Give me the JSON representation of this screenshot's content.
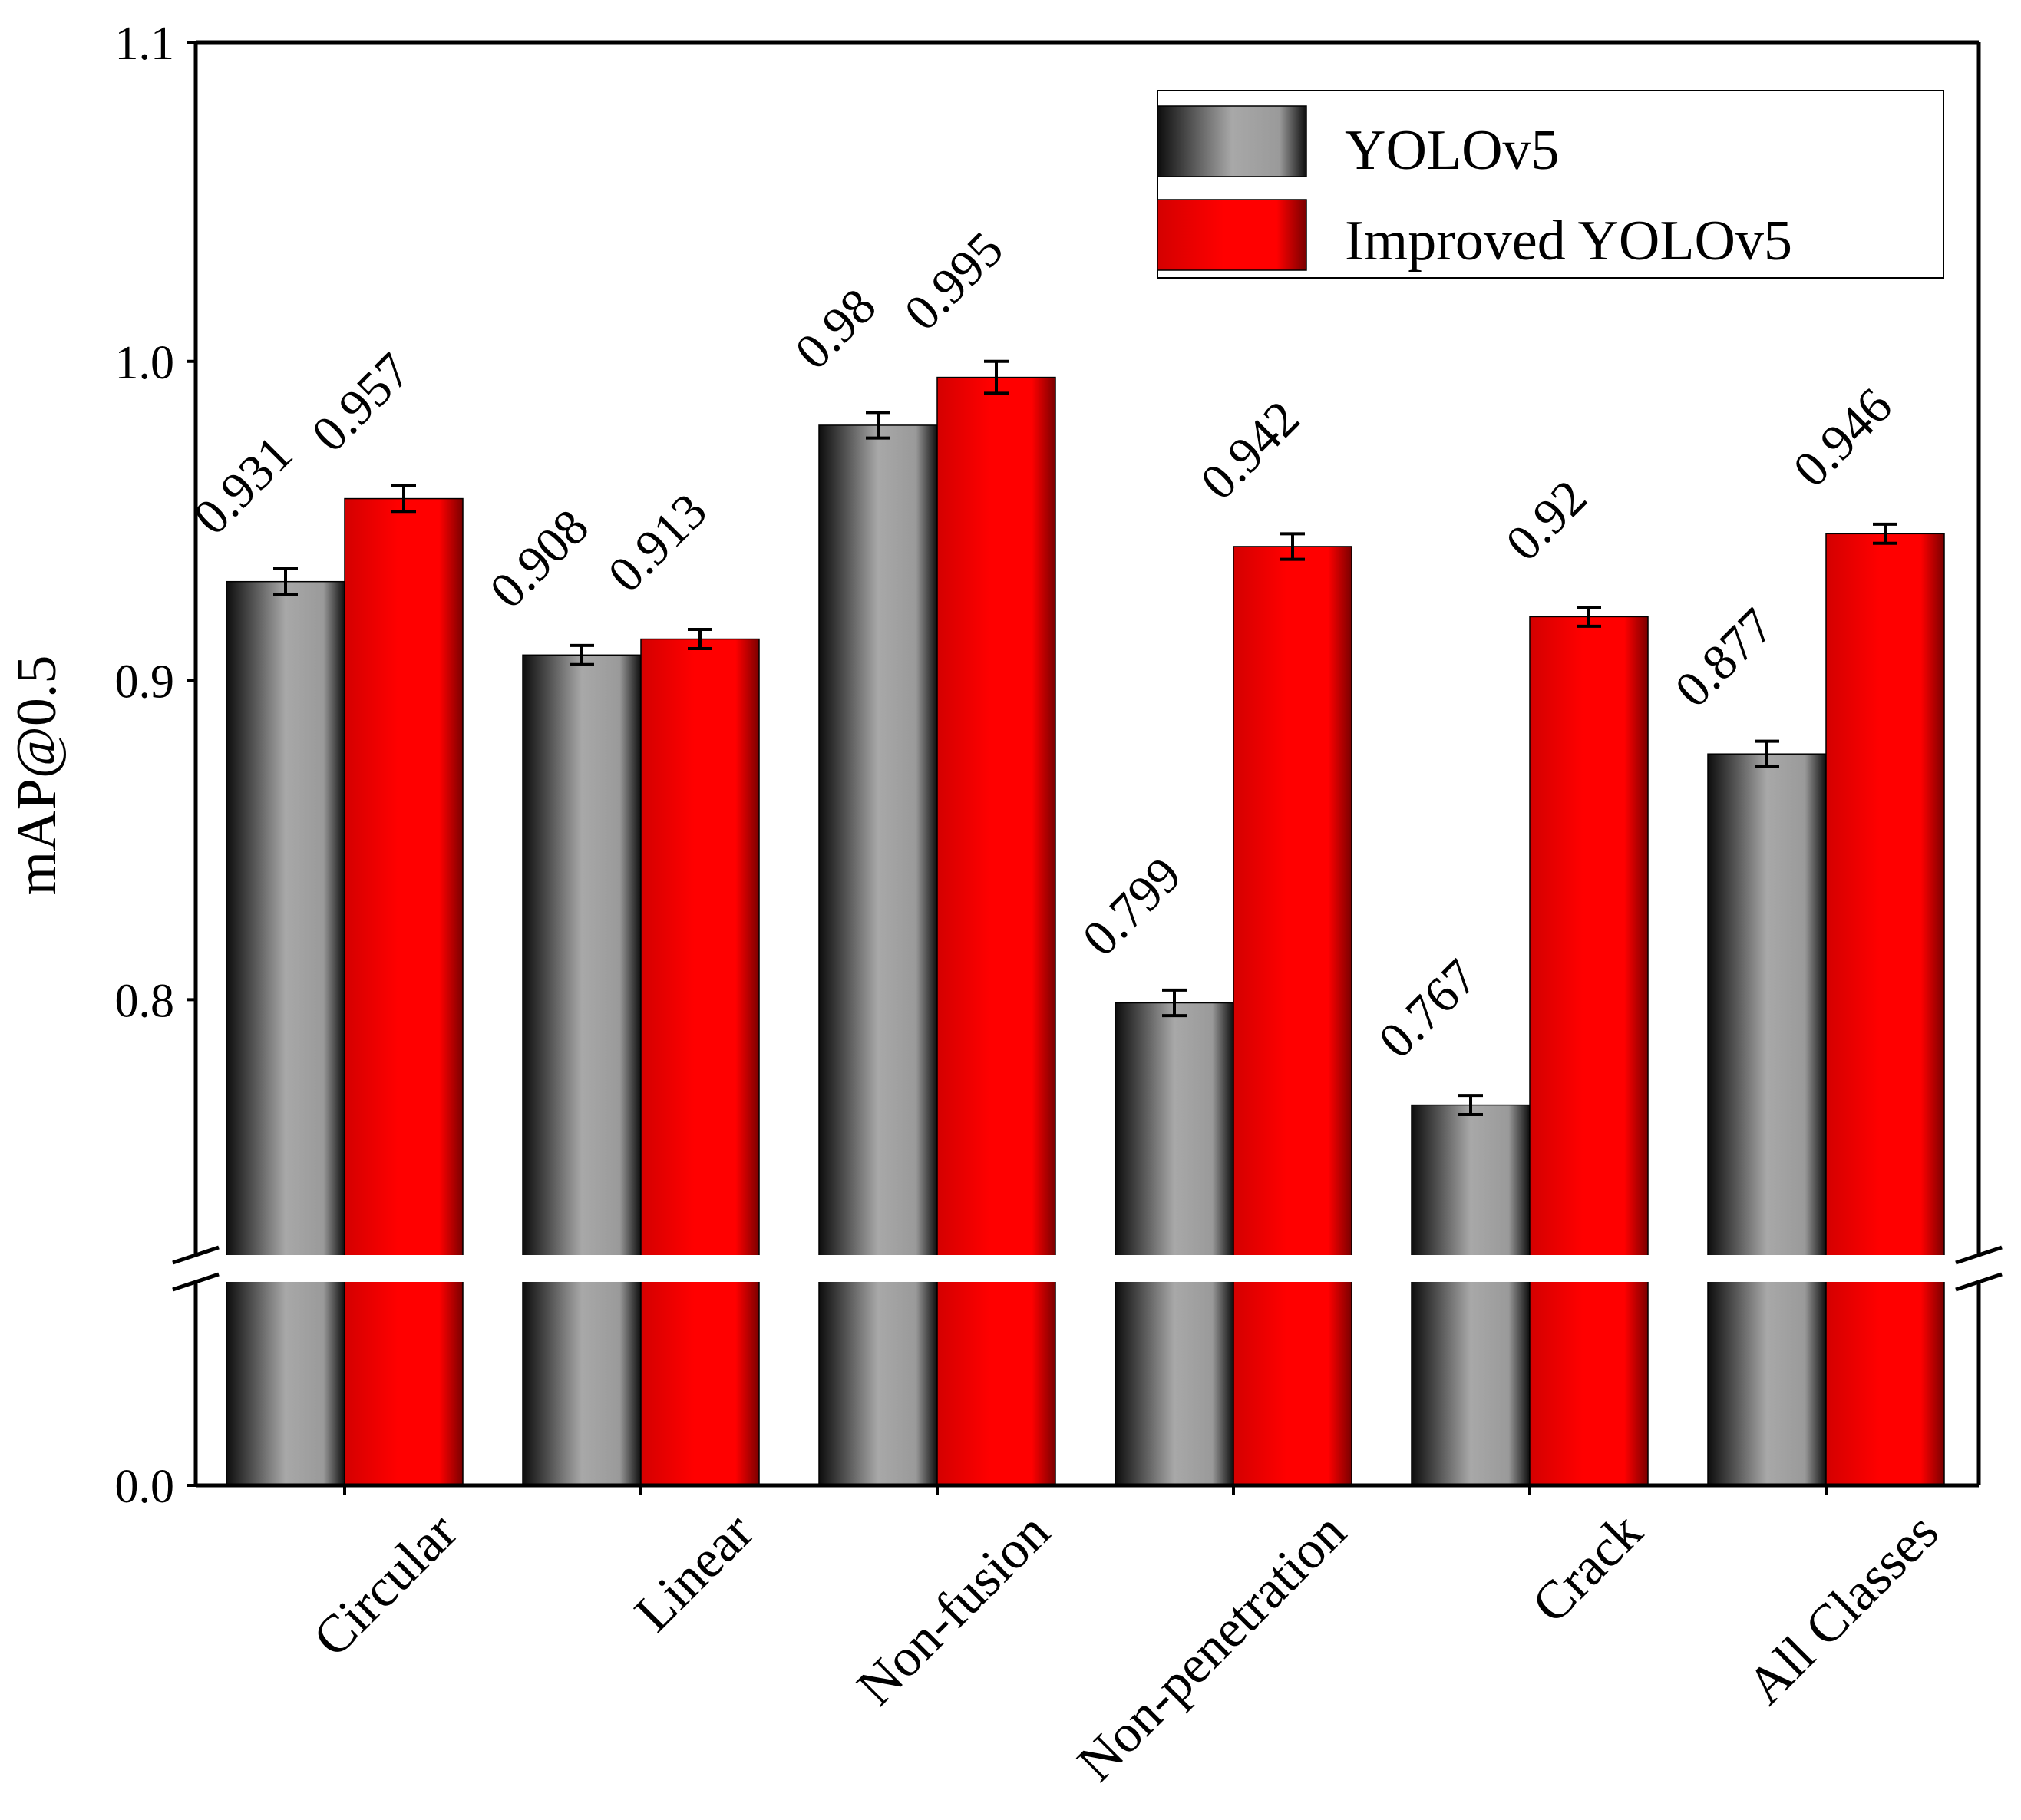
{
  "chart_data": {
    "type": "bar",
    "title": "",
    "xlabel": "",
    "ylabel": "mAP@0.5",
    "categories": [
      "Circular",
      "Linear",
      "Non-fusion",
      "Non-penetration",
      "Crack",
      "All Classes"
    ],
    "series": [
      {
        "name": "YOLOv5",
        "values": [
          0.931,
          0.908,
          0.98,
          0.799,
          0.767,
          0.877
        ],
        "labels": [
          "0.931",
          "0.908",
          "0.98",
          "0.799",
          "0.767",
          "0.877"
        ],
        "errors": [
          0.004,
          0.003,
          0.004,
          0.004,
          0.003,
          0.004
        ],
        "color": "#9a9a9a"
      },
      {
        "name": "Improved YOLOv5",
        "values": [
          0.957,
          0.913,
          0.995,
          0.942,
          0.92,
          0.946
        ],
        "labels": [
          "0.957",
          "0.913",
          "0.995",
          "0.942",
          "0.92",
          "0.946"
        ],
        "errors": [
          0.004,
          0.003,
          0.005,
          0.004,
          0.003,
          0.003
        ],
        "color": "#ff0000"
      }
    ],
    "y_axis": {
      "broken": true,
      "lower_range": [
        0.0,
        0.08
      ],
      "upper_range": [
        0.72,
        1.1
      ],
      "ticks": [
        0.0,
        0.8,
        0.9,
        1.0,
        1.1
      ],
      "tick_labels": [
        "0.0",
        "0.8",
        "0.9",
        "1.0",
        "1.1"
      ]
    },
    "legend": {
      "position": "top-right",
      "entries": [
        "YOLOv5",
        "Improved YOLOv5"
      ]
    },
    "grid": false
  }
}
